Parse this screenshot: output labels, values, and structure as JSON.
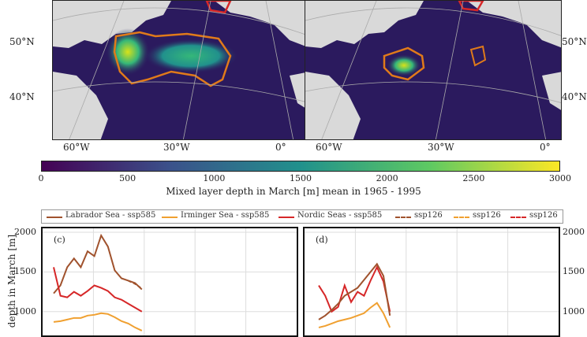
{
  "maps": {
    "lat_labels": [
      "50°N",
      "40°N"
    ],
    "lon_labels": [
      "60°W",
      "30°W",
      "0°"
    ],
    "colors": {
      "ocean_low": "#2b1a5e",
      "ocean_mid": "#3b3f8a",
      "land": "#d9d9d9",
      "labrador_contour": "#e07a1a",
      "nordic_contour": "#d62728",
      "high_mld": "#d8e219",
      "mid_mld": "#35b779"
    }
  },
  "colorbar": {
    "ticks": [
      "0",
      "500",
      "1000",
      "1500",
      "2000",
      "2500",
      "3000"
    ],
    "title": "Mixed layer depth in March [m] mean in 1965 - 1995",
    "range": [
      0,
      3000
    ],
    "colormap": [
      "#440154",
      "#3b528b",
      "#21918c",
      "#5ec962",
      "#fde725"
    ]
  },
  "legend": {
    "items": [
      {
        "label": "Labrador Sea - ssp585",
        "color": "#a0522d",
        "style": "solid"
      },
      {
        "label": "Irminger Sea - ssp585",
        "color": "#f0a030",
        "style": "solid"
      },
      {
        "label": "Nordic Seas - ssp585",
        "color": "#d62728",
        "style": "solid"
      },
      {
        "label": "ssp126",
        "color": "#a0522d",
        "style": "dashed"
      },
      {
        "label": "ssp126",
        "color": "#f0a030",
        "style": "dashed"
      },
      {
        "label": "ssp126",
        "color": "#d62728",
        "style": "dashed"
      }
    ]
  },
  "panels": {
    "c": {
      "letter": "(c)"
    },
    "d": {
      "letter": "(d)"
    }
  },
  "ylabel": "depth in March [m]",
  "chart_data": {
    "type": "line",
    "ylabel": "depth in March [m]",
    "ylim": [
      700,
      2050
    ],
    "yticks": [
      1000,
      1500,
      2000
    ],
    "grid": true,
    "panels": [
      {
        "panel": "(c)",
        "series": [
          {
            "name": "Labrador Sea - ssp585",
            "x": [
              0,
              1,
              2,
              3,
              4,
              5,
              6,
              7,
              8,
              9,
              10,
              11,
              12,
              13
            ],
            "y": [
              1230,
              1330,
              1560,
              1670,
              1560,
              1760,
              1700,
              1960,
              1820,
              1520,
              1420,
              1390,
              1360,
              1280
            ]
          },
          {
            "name": "Nordic Seas - ssp585",
            "x": [
              0,
              1,
              2,
              3,
              4,
              5,
              6,
              7,
              8,
              9,
              10,
              11,
              12,
              13
            ],
            "y": [
              1560,
              1200,
              1180,
              1250,
              1200,
              1260,
              1330,
              1300,
              1260,
              1180,
              1150,
              1100,
              1050,
              1000
            ]
          },
          {
            "name": "Irminger Sea - ssp585",
            "x": [
              0,
              1,
              2,
              3,
              4,
              5,
              6,
              7,
              8,
              9,
              10,
              11,
              12,
              13
            ],
            "y": [
              870,
              880,
              900,
              920,
              920,
              950,
              960,
              980,
              970,
              930,
              880,
              850,
              800,
              760
            ]
          },
          {
            "name": "ssp126",
            "x": [
              11,
              12,
              13
            ],
            "y": [
              1390,
              1350,
              1290
            ]
          }
        ]
      },
      {
        "panel": "(d)",
        "series": [
          {
            "name": "Nordic Seas - ssp585",
            "x": [
              0,
              1,
              2,
              3,
              4,
              5,
              6,
              7,
              8,
              9,
              10,
              11
            ],
            "y": [
              1330,
              1200,
              1000,
              1060,
              1330,
              1120,
              1250,
              1200,
              1390,
              1560,
              1380,
              1000
            ]
          },
          {
            "name": "Labrador Sea - ssp585",
            "x": [
              0,
              1,
              2,
              3,
              4,
              5,
              6,
              7,
              8,
              9,
              10,
              11
            ],
            "y": [
              900,
              950,
              1020,
              1100,
              1200,
              1250,
              1300,
              1400,
              1500,
              1600,
              1450,
              950
            ]
          },
          {
            "name": "Irminger Sea - ssp585",
            "x": [
              0,
              1,
              2,
              3,
              4,
              5,
              6,
              7,
              8,
              9,
              10,
              11
            ],
            "y": [
              800,
              820,
              850,
              880,
              900,
              920,
              950,
              980,
              1050,
              1110,
              980,
              800
            ]
          }
        ]
      }
    ]
  }
}
